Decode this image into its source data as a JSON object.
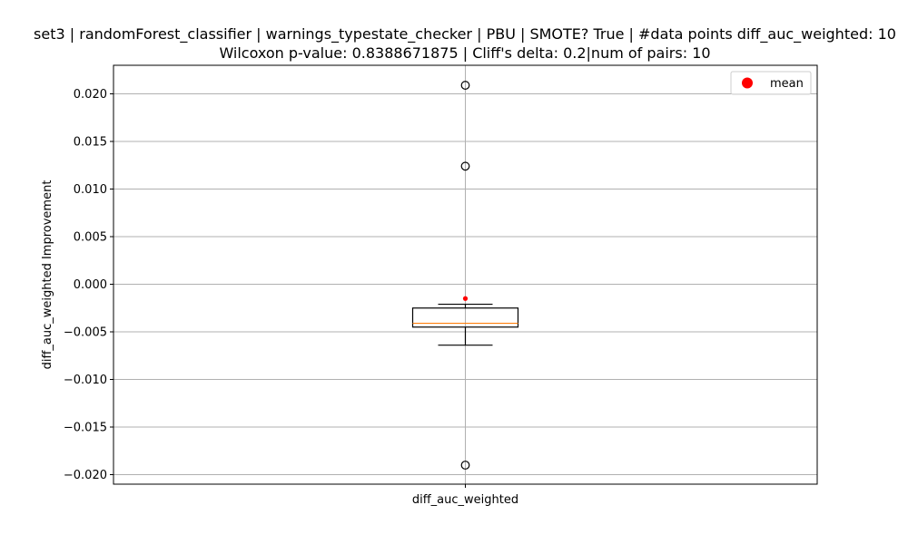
{
  "chart_data": {
    "type": "box",
    "title_line1": "set3 | randomForest_classifier | warnings_typestate_checker | PBU | SMOTE? True | #data points diff_auc_weighted: 10",
    "title_line2": "Wilcoxon p-value: 0.8388671875 | Cliff's delta: 0.2|num of pairs: 10",
    "xlabel": "",
    "ylabel": "diff_auc_weighted Improvement",
    "categories": [
      "diff_auc_weighted"
    ],
    "ylim": [
      -0.021,
      0.023
    ],
    "yticks": [
      -0.02,
      -0.015,
      -0.01,
      -0.005,
      0.0,
      0.005,
      0.01,
      0.015,
      0.02
    ],
    "ytick_labels": [
      "−0.020",
      "−0.015",
      "−0.010",
      "−0.005",
      "0.000",
      "0.005",
      "0.010",
      "0.015",
      "0.020"
    ],
    "grid": true,
    "legend": {
      "label": "mean",
      "placement": "top-right"
    },
    "box": {
      "whisker_low": -0.0064,
      "q1": -0.0045,
      "median": -0.0041,
      "q3": -0.0025,
      "whisker_high": -0.0021,
      "mean": -0.0015,
      "outliers": [
        0.0209,
        0.0124,
        -0.019
      ]
    },
    "colors": {
      "box": "#000000",
      "median": "#ff7f0e",
      "mean": "#ff0000",
      "grid": "#b0b0b0"
    }
  }
}
